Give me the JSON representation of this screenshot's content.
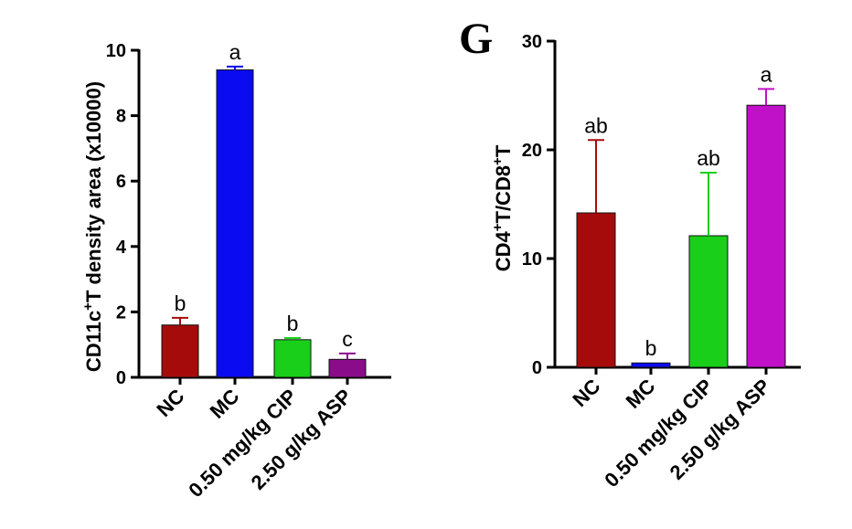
{
  "panel_letter": "G",
  "chart_data": [
    {
      "type": "bar",
      "ylabel_main": "CD11c",
      "ylabel_sup": "+",
      "ylabel_rest": "T density area (x10000)",
      "ylim": [
        0,
        10
      ],
      "yticks": [
        "0",
        "2",
        "4",
        "6",
        "8",
        "10"
      ],
      "categories": [
        "NC",
        "MC",
        "0.50 mg/kg CIP",
        "2.50 g/kg ASP"
      ],
      "values": [
        1.6,
        9.4,
        1.15,
        0.55
      ],
      "errors": [
        0.22,
        0.1,
        0.05,
        0.18
      ],
      "significance": [
        "b",
        "a",
        "b",
        "c"
      ],
      "colors": [
        "#a50b0b",
        "#0b0bf2",
        "#19cf19",
        "#8b0c8b"
      ]
    },
    {
      "type": "bar",
      "ylabel_parts": [
        "CD4",
        "+",
        "T/CD8",
        "+",
        "T"
      ],
      "ylim": [
        0,
        30
      ],
      "yticks": [
        "0",
        "10",
        "20",
        "30"
      ],
      "categories": [
        "NC",
        "MC",
        "0.50 mg/kg CIP",
        "2.50 g/kg ASP"
      ],
      "values": [
        14.2,
        0.4,
        12.1,
        24.1
      ],
      "errors": [
        6.7,
        0,
        5.8,
        1.5
      ],
      "significance": [
        "ab",
        "b",
        "ab",
        "a"
      ],
      "colors": [
        "#a50b0b",
        "#0b0bf2",
        "#19cf19",
        "#c010c8"
      ]
    }
  ]
}
